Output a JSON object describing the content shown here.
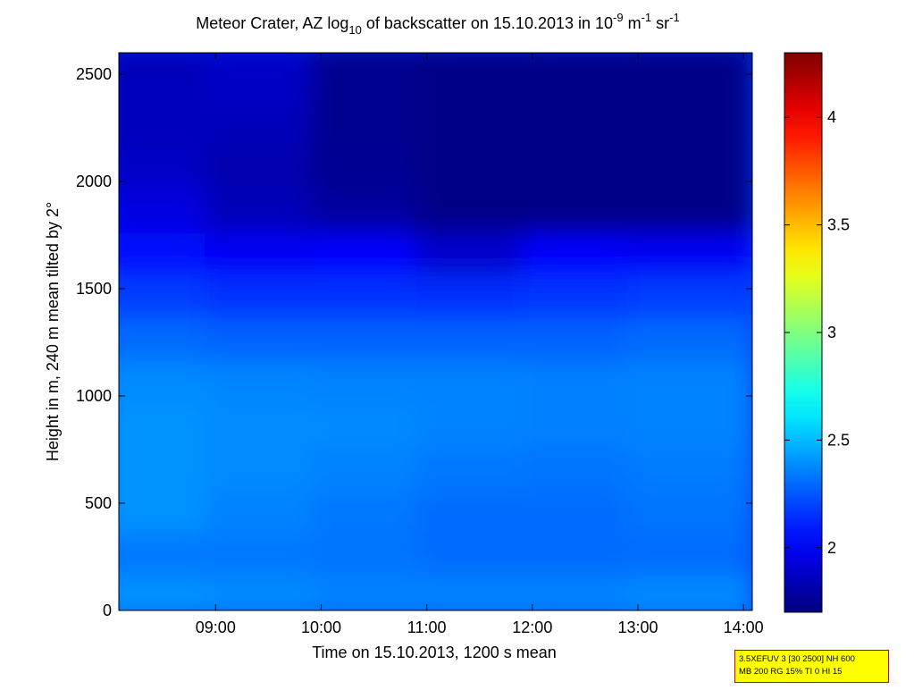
{
  "chart_data": [
    {
      "type": "heatmap",
      "title": {
        "prefix": "Meteor Crater, AZ log",
        "sub": "10",
        "middle": " of backscatter on 15.10.2013 in 10",
        "sup1": "-9",
        "unit_m": " m",
        "sup2": "-1",
        "unit_sr": " sr",
        "sup3": "-1"
      },
      "xlabel": "Time on 15.10.2013, 1200 s mean",
      "ylabel": "Height in m, 240 m mean tilted by 2°",
      "xlim": [
        "08:05",
        "14:05"
      ],
      "x_ticks": [
        "09:00",
        "10:00",
        "11:00",
        "12:00",
        "13:00",
        "14:00"
      ],
      "ylim": [
        0,
        2600
      ],
      "y_ticks": [
        0,
        500,
        1000,
        1500,
        2000,
        2500
      ],
      "x": [
        "08:30",
        "09:30",
        "10:30",
        "11:30",
        "12:30",
        "13:30"
      ],
      "y": [
        100,
        300,
        500,
        700,
        900,
        1100,
        1300,
        1500,
        1700,
        1900,
        2100,
        2300,
        2500
      ],
      "z": [
        [
          2.4,
          2.38,
          2.36,
          2.36,
          2.36,
          2.38
        ],
        [
          2.33,
          2.33,
          2.32,
          2.3,
          2.3,
          2.3
        ],
        [
          2.4,
          2.36,
          2.33,
          2.3,
          2.3,
          2.32
        ],
        [
          2.4,
          2.38,
          2.36,
          2.33,
          2.32,
          2.34
        ],
        [
          2.4,
          2.38,
          2.38,
          2.36,
          2.35,
          2.36
        ],
        [
          2.38,
          2.37,
          2.36,
          2.36,
          2.35,
          2.36
        ],
        [
          2.3,
          2.28,
          2.28,
          2.28,
          2.28,
          2.3
        ],
        [
          2.18,
          2.15,
          2.15,
          2.14,
          2.16,
          2.18
        ],
        [
          2.05,
          2.0,
          2.02,
          1.9,
          2.02,
          2.0
        ],
        [
          1.95,
          1.85,
          1.78,
          1.72,
          1.72,
          1.72
        ],
        [
          1.88,
          1.82,
          1.75,
          1.72,
          1.72,
          1.72
        ],
        [
          1.85,
          1.85,
          1.74,
          1.72,
          1.72,
          1.72
        ],
        [
          1.85,
          1.88,
          1.74,
          1.72,
          1.72,
          1.72
        ]
      ]
    },
    {
      "type": "colorbar",
      "clim": [
        1.7,
        4.3
      ],
      "ticks": [
        2,
        2.5,
        3,
        3.5,
        4
      ],
      "tick_labels": [
        "2",
        "2.5",
        "3",
        "3.5",
        "4"
      ],
      "colormap": "jet"
    }
  ],
  "info_box": {
    "line1": "3.5XEFUV 3 [30 2500] NH 600",
    "line2": "MB 200 RG 15% TI 0 HI 15",
    "background": "#ffff00",
    "border": "#d40000"
  }
}
